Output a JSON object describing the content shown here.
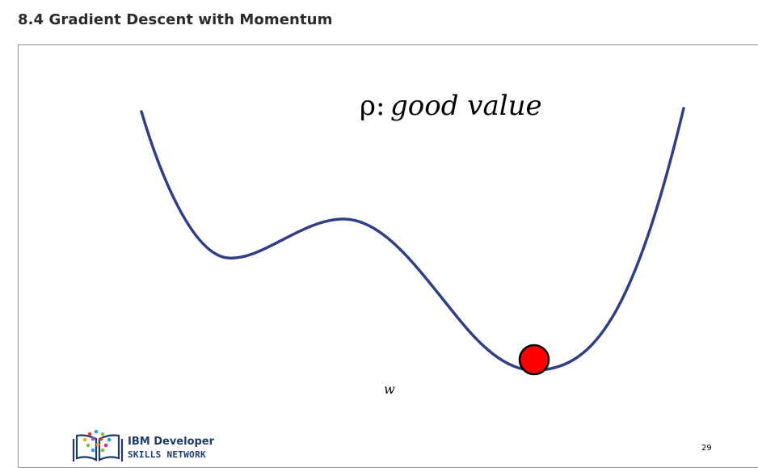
{
  "page": {
    "section_title": "8.4 Gradient Descent with Momentum"
  },
  "slide": {
    "heading_symbol": "ρ:",
    "heading_text": "good value",
    "axis_label": "w",
    "page_number": "29",
    "logo": {
      "line1": "IBM Developer",
      "line2": "SKILLS NETWORK",
      "icon": "book-network-icon"
    },
    "curve_color": "#2f3f86",
    "ball_color": "#ff0000"
  }
}
